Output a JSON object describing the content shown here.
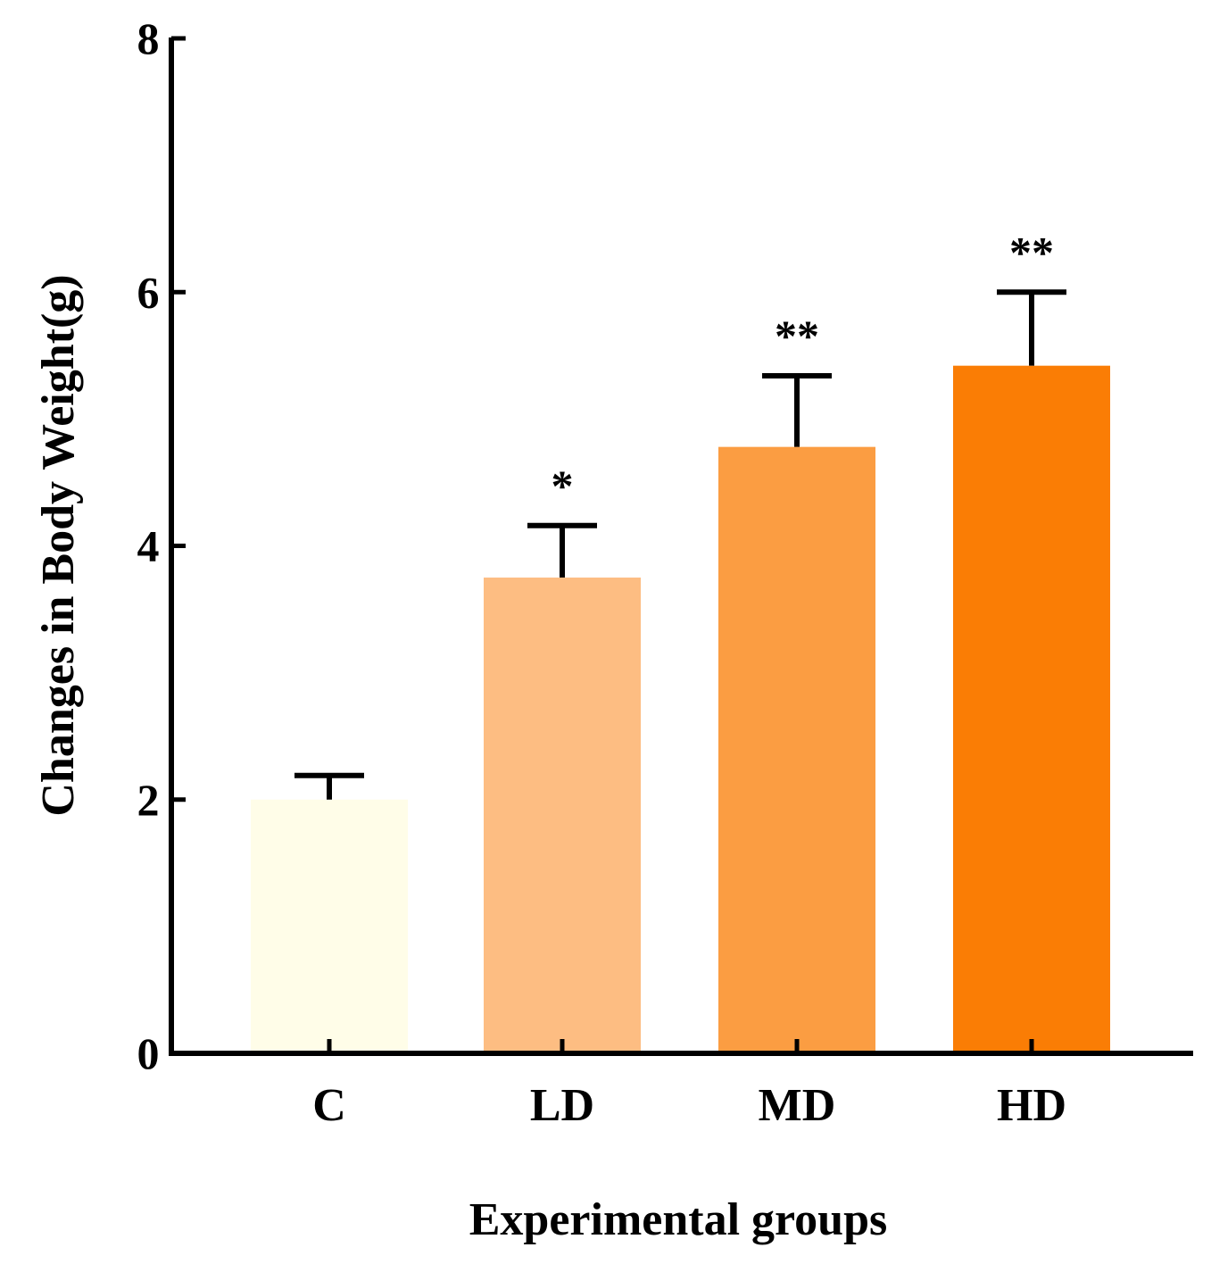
{
  "chart_data": {
    "type": "bar",
    "title": "",
    "xlabel": "Experimental groups",
    "ylabel": "Changes in Body Weight(g)",
    "ylim": [
      0,
      8
    ],
    "yticks": [
      "0",
      "2",
      "4",
      "6",
      "8"
    ],
    "grid": false,
    "categories": [
      "C",
      "LD",
      "MD",
      "HD"
    ],
    "values": [
      2.0,
      3.75,
      4.78,
      5.42
    ],
    "errors": [
      0.19,
      0.41,
      0.56,
      0.58
    ],
    "significance": [
      "",
      "*",
      "**",
      "**"
    ],
    "colors": [
      "#fffde8",
      "#fdbd82",
      "#fb9d42",
      "#fa7d05"
    ]
  }
}
